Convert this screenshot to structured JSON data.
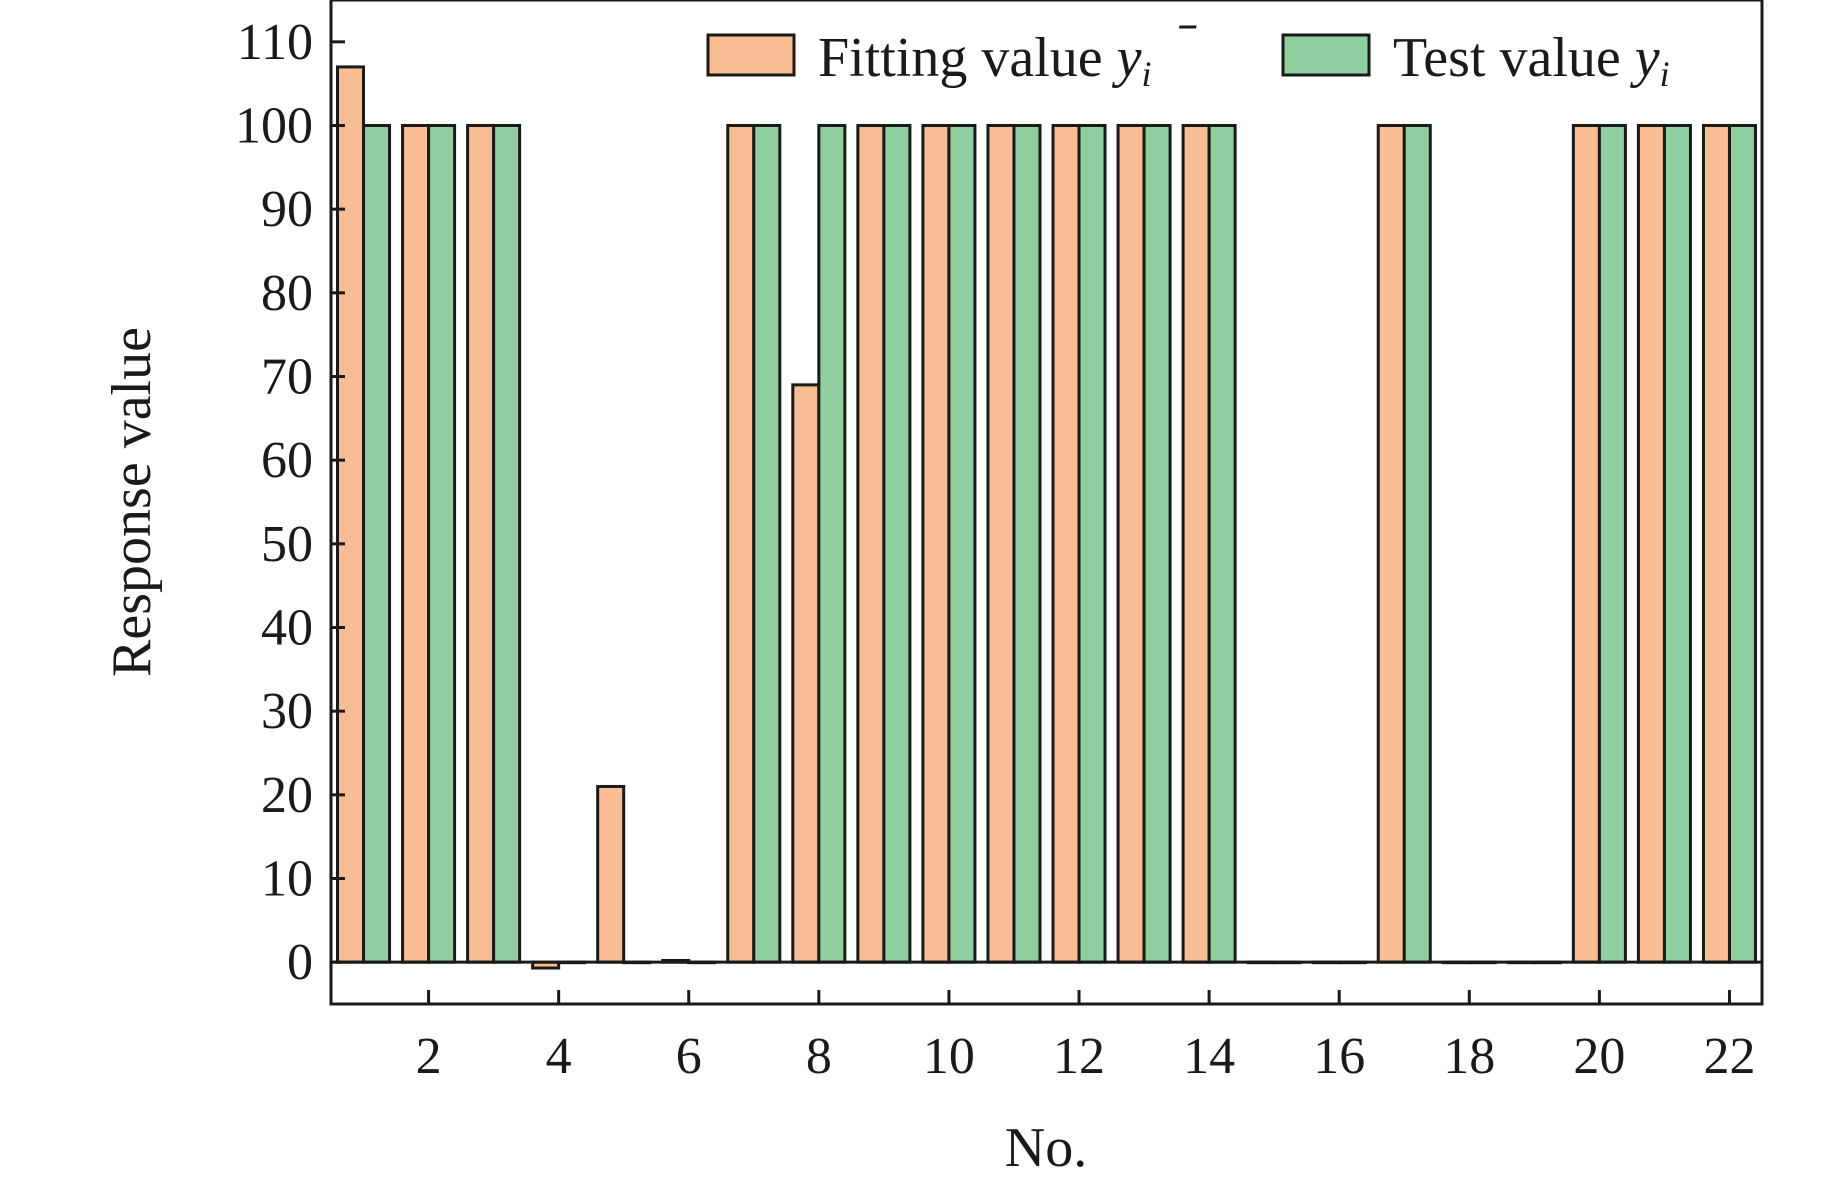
{
  "chart_data": {
    "type": "bar",
    "title": "",
    "xlabel": "No.",
    "ylabel": "Response value",
    "ylim": [
      -5,
      115
    ],
    "xlim": [
      0.5,
      22.5
    ],
    "yticks": [
      0,
      10,
      20,
      30,
      40,
      50,
      60,
      70,
      80,
      90,
      100,
      110
    ],
    "yticks_labels": [
      "0",
      "10",
      "20",
      "30",
      "40",
      "50",
      "60",
      "70",
      "80",
      "90",
      "100",
      "110"
    ],
    "xticks": [
      2,
      4,
      6,
      8,
      10,
      12,
      14,
      16,
      18,
      20,
      22
    ],
    "xticks_labels": [
      "2",
      "4",
      "6",
      "8",
      "10",
      "12",
      "14",
      "16",
      "18",
      "20",
      "22"
    ],
    "categories": [
      1,
      2,
      3,
      4,
      5,
      6,
      7,
      8,
      9,
      10,
      11,
      12,
      13,
      14,
      15,
      16,
      17,
      18,
      19,
      20,
      21,
      22
    ],
    "legend_position": "top-right",
    "series": [
      {
        "name": "Fitting value",
        "legend_label": "Fitting value ",
        "symbol": "y",
        "symbol_bar": "̄",
        "subscript": "i",
        "color": "#f8bd92",
        "values": [
          107,
          100,
          100,
          -0.7,
          21,
          0.2,
          100,
          69,
          100,
          100,
          100,
          100,
          100,
          100,
          0,
          0,
          100,
          0,
          0,
          100,
          100,
          100
        ]
      },
      {
        "name": "Test value",
        "legend_label": "Test value ",
        "symbol": "y",
        "subscript": "i",
        "color": "#8fcf9f",
        "values": [
          100,
          100,
          100,
          0,
          0,
          0,
          100,
          100,
          100,
          100,
          100,
          100,
          100,
          100,
          0,
          0,
          100,
          0,
          0,
          100,
          100,
          100
        ]
      }
    ],
    "colors": {
      "edge": "#1a1a1a",
      "axis": "#1a1a1a"
    }
  }
}
